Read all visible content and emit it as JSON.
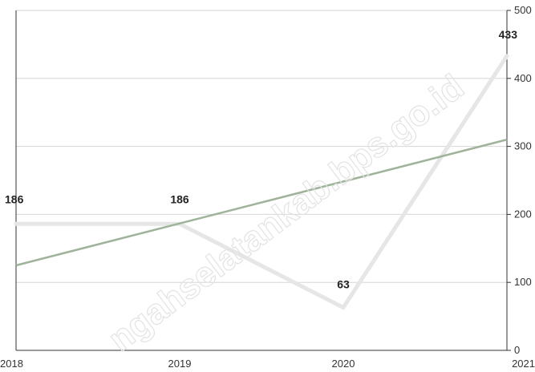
{
  "watermark": "ngahselatankab.bps.go.id",
  "colors": {
    "grid": "#d6d6d6",
    "axis": "#333333",
    "series_line": "#e6e6e6",
    "trend_line": "#9fb39a"
  },
  "chart_data": {
    "type": "line",
    "x": [
      "2018",
      "2019",
      "2020",
      "2021"
    ],
    "series": [
      {
        "values": [
          186,
          186,
          63,
          433
        ],
        "labels": [
          "186",
          "186",
          "63",
          "433"
        ]
      }
    ],
    "trendline": {
      "start": 125,
      "end": 310
    },
    "ylim": [
      0,
      500
    ],
    "yticks": [
      "0",
      "100",
      "200",
      "300",
      "400",
      "500"
    ],
    "y_axis_side": "right",
    "grid": true,
    "legend": "none"
  }
}
